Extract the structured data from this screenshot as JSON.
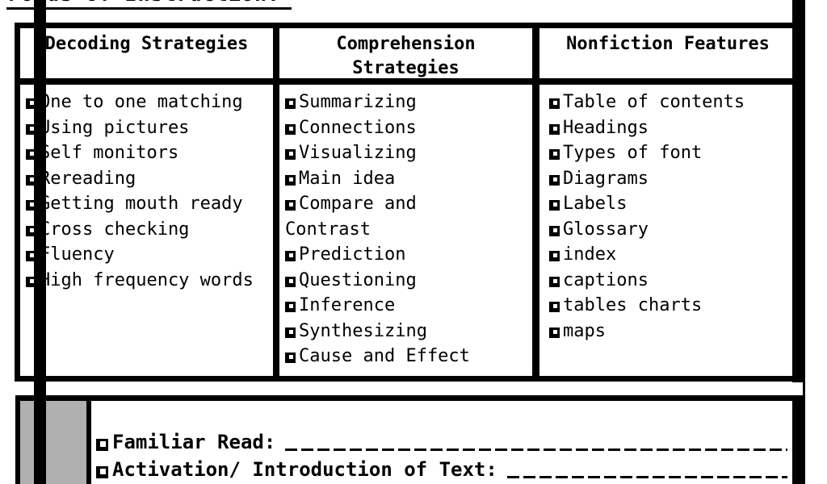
{
  "page": {
    "title": "Focus of Instruction:"
  },
  "table": {
    "columns": [
      {
        "header": "Decoding Strategies",
        "items": [
          "One to one matching",
          "Using pictures",
          "Self monitors",
          "Rereading",
          "Getting mouth ready",
          "Cross checking",
          "Fluency",
          "High frequency words"
        ]
      },
      {
        "header": "Comprehension Strategies",
        "items": [
          "Summarizing",
          "Connections",
          "Visualizing",
          "Main idea",
          "Compare and\nContrast",
          "Prediction",
          "Questioning",
          "Inference",
          "Synthesizing",
          "Cause and Effect"
        ]
      },
      {
        "header": "Nonfiction Features",
        "items": [
          "Table of contents",
          "Headings",
          "Types of font",
          "Diagrams",
          "Labels",
          "Glossary",
          "index",
          "captions",
          "tables charts",
          "maps"
        ]
      }
    ]
  },
  "bottom_section": {
    "rows": [
      {
        "label": "Familiar Read:",
        "has_blank_line": true
      },
      {
        "label": "Activation/ Introduction of Text:",
        "has_blank_line": true
      }
    ]
  },
  "colors": {
    "paper": "#ffffff",
    "ink": "#000000",
    "gray_cell": "#b0b0b0"
  }
}
